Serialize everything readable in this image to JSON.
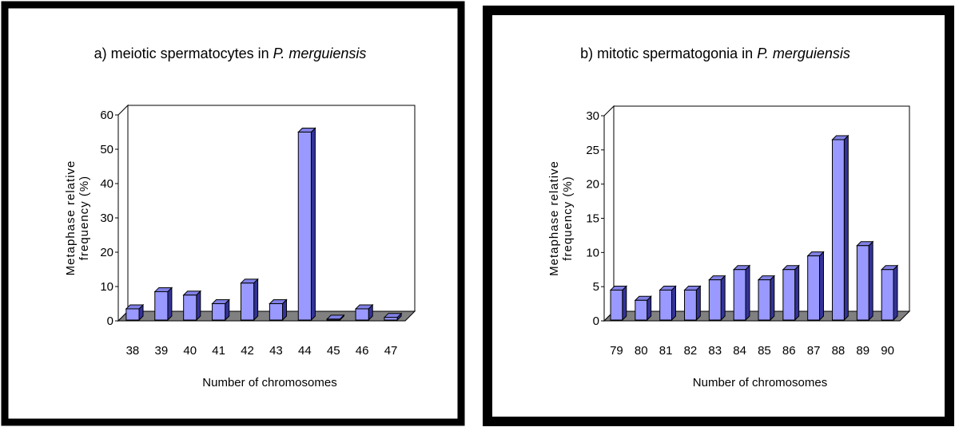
{
  "charts": [
    {
      "title_prefix": "a) meiotic spermatocytes in ",
      "title_species": "P. merguiensis"
    },
    {
      "title_prefix": "b) mitotic spermatogonia in ",
      "title_species": "P. merguiensis"
    }
  ],
  "colors": {
    "bar_front": "#9999FF",
    "bar_top": "#8080E6",
    "bar_side": "#333399",
    "floor": "#808080",
    "frame": "#000000",
    "axis": "#000000"
  },
  "chart_data": [
    {
      "type": "bar",
      "title": "a) meiotic spermatocytes in P. merguiensis",
      "xlabel": "Number of chromosomes",
      "ylabel": "Metaphase relative frequency (%)",
      "ylabel_lines": [
        "Metaphase relative",
        "frequency (%)"
      ],
      "categories": [
        "38",
        "39",
        "40",
        "41",
        "42",
        "43",
        "44",
        "45",
        "46",
        "47"
      ],
      "values": [
        3.5,
        8.5,
        7.5,
        5,
        11,
        5,
        55,
        0.5,
        3.5,
        1
      ],
      "ylim": [
        0,
        60
      ],
      "yticks": [
        0,
        10,
        20,
        30,
        40,
        50,
        60
      ],
      "grid": false,
      "legend": "none",
      "style": "3d-column"
    },
    {
      "type": "bar",
      "title": "b) mitotic spermatogonia in P. merguiensis",
      "xlabel": "Number of chromosomes",
      "ylabel": "Metaphase relative frequency (%)",
      "ylabel_lines": [
        "Metaphase relative",
        "frequency (%)"
      ],
      "categories": [
        "79",
        "80",
        "81",
        "82",
        "83",
        "84",
        "85",
        "86",
        "87",
        "88",
        "89",
        "90"
      ],
      "values": [
        4.5,
        3,
        4.5,
        4.5,
        6,
        7.5,
        6,
        7.5,
        9.5,
        26.5,
        11,
        7.5
      ],
      "ylim": [
        0,
        30
      ],
      "yticks": [
        0,
        5,
        10,
        15,
        20,
        25,
        30
      ],
      "grid": false,
      "legend": "none",
      "style": "3d-column"
    }
  ]
}
